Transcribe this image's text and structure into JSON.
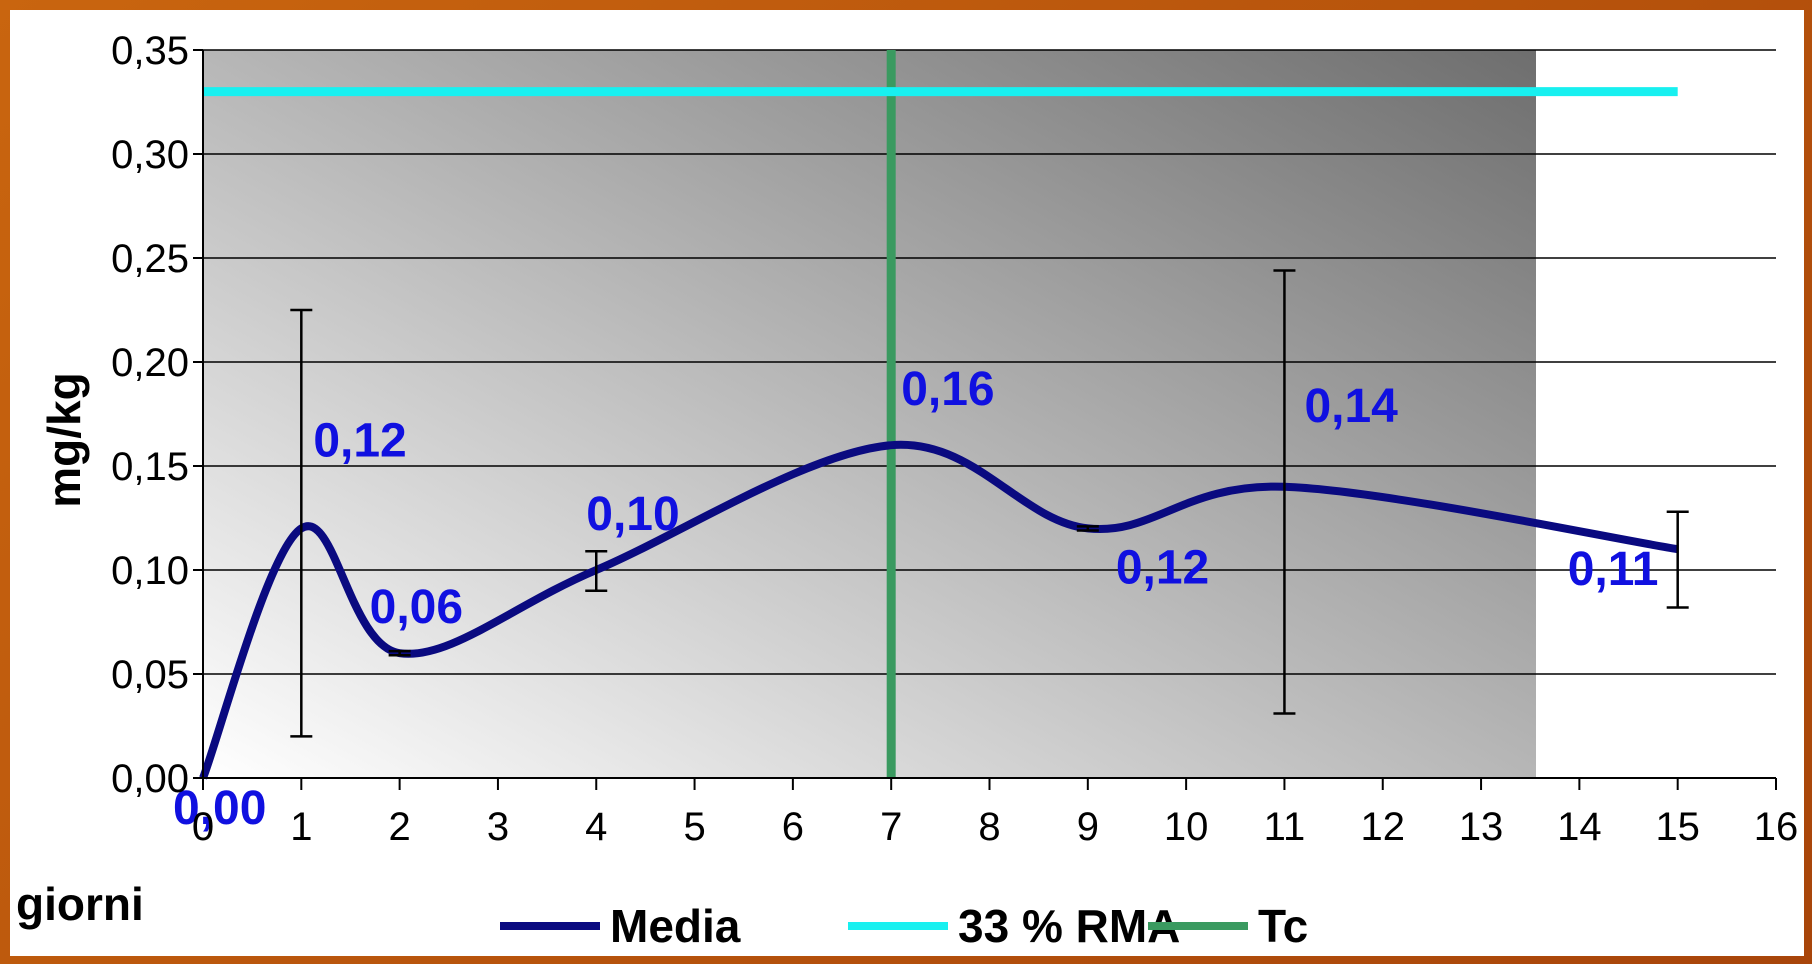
{
  "chart_data": {
    "type": "line",
    "xlabel": "giorni",
    "ylabel": "mg/kg",
    "xlim": [
      0,
      16
    ],
    "ylim": [
      0,
      0.35
    ],
    "x_ticks": [
      "0",
      "1",
      "2",
      "3",
      "4",
      "5",
      "6",
      "7",
      "8",
      "9",
      "10",
      "11",
      "12",
      "13",
      "14",
      "15",
      "16"
    ],
    "y_ticks": [
      "0,00",
      "0,05",
      "0,10",
      "0,15",
      "0,20",
      "0,25",
      "0,30",
      "0,35"
    ],
    "grid": "horizontal",
    "legend_position": "bottom",
    "series": [
      {
        "name": "Media",
        "color": "#0a0a80",
        "smooth": true,
        "x": [
          0,
          1,
          2,
          4,
          7,
          9,
          11,
          15
        ],
        "y": [
          0.0,
          0.12,
          0.06,
          0.1,
          0.16,
          0.12,
          0.14,
          0.11
        ],
        "labels": [
          "0,00",
          "0,12",
          "0,06",
          "0,10",
          "0,16",
          "0,12",
          "0,14",
          "0,11"
        ],
        "error_bars": [
          {
            "x": 1,
            "low": 0.02,
            "high": 0.225
          },
          {
            "x": 2,
            "low": 0.059,
            "high": 0.061
          },
          {
            "x": 4,
            "low": 0.09,
            "high": 0.109
          },
          {
            "x": 9,
            "low": 0.119,
            "high": 0.121
          },
          {
            "x": 11,
            "low": 0.031,
            "high": 0.244
          },
          {
            "x": 15,
            "low": 0.082,
            "high": 0.128
          }
        ]
      },
      {
        "name": "33 % RMA",
        "color": "#18f0f0",
        "x": [
          0,
          15
        ],
        "y": [
          0.33,
          0.33
        ]
      },
      {
        "name": "Tc",
        "color": "#3a9a60",
        "vertical_x": 7
      }
    ]
  }
}
